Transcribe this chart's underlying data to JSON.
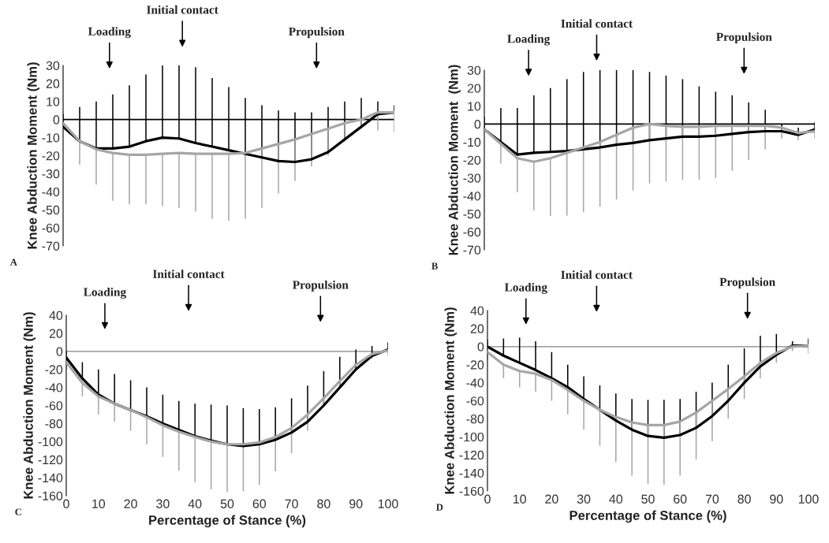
{
  "chart_data": [
    {
      "type": "line",
      "ylabel": "Knee Abduction Moment (Nm)",
      "ylim": [
        -70,
        30
      ],
      "yticks": [
        -70,
        -60,
        -50,
        -40,
        -30,
        -20,
        -10,
        0,
        10,
        20,
        30
      ],
      "tick_labels": "y",
      "categories": [
        null,
        null,
        null,
        null,
        null,
        null,
        null,
        null,
        null,
        null,
        null,
        null,
        null,
        null,
        null,
        null,
        null,
        null,
        null,
        null,
        null
      ],
      "ref_lines": [
        {
          "axis": "y",
          "value": 0,
          "color": "#000000"
        }
      ],
      "series": [
        {
          "color": "#000000",
          "values": [
            -4,
            -12,
            -16,
            -16,
            -15,
            -12,
            -10,
            -10.5,
            -13,
            -15,
            -17,
            -19,
            -21,
            -23,
            -23.5,
            -22,
            -18,
            -11,
            -4,
            3,
            4
          ],
          "errors": [
            [
              -4,
              3
            ],
            [
              -12,
              7
            ],
            [
              -16,
              10
            ],
            [
              -16,
              14
            ],
            [
              -15,
              19
            ],
            [
              -12,
              25
            ],
            [
              -10,
              30
            ],
            [
              -10.5,
              30
            ],
            [
              -13,
              29
            ],
            [
              -15,
              23
            ],
            [
              -17,
              18
            ],
            [
              -19,
              12
            ],
            [
              -21,
              8
            ],
            [
              -23,
              5
            ],
            [
              -23.5,
              4
            ],
            [
              -22,
              4
            ],
            [
              -18,
              7
            ],
            [
              -11,
              10
            ],
            [
              -4,
              12
            ],
            [
              3,
              10
            ],
            [
              4,
              8
            ]
          ]
        },
        {
          "color": "#a6a6a6",
          "values": [
            -2,
            -12,
            -16.5,
            -18.5,
            -19.5,
            -19.5,
            -19,
            -18.5,
            -19,
            -19,
            -19,
            -18.5,
            -16,
            -13.5,
            -11,
            -8,
            -5,
            -2,
            0,
            4,
            4
          ],
          "errors": [
            [
              -3,
              -2
            ],
            [
              -25,
              -12
            ],
            [
              -36,
              -16.5
            ],
            [
              -45,
              -18.5
            ],
            [
              -47,
              -19.5
            ],
            [
              -47,
              -19.5
            ],
            [
              -48,
              -19
            ],
            [
              -49,
              -18.5
            ],
            [
              -51,
              -19
            ],
            [
              -55,
              -19
            ],
            [
              -56,
              -19
            ],
            [
              -55,
              -18.5
            ],
            [
              -49,
              -16
            ],
            [
              -41,
              -13.5
            ],
            [
              -34,
              -11
            ],
            [
              -26,
              -8
            ],
            [
              -20,
              -5
            ],
            [
              -12,
              -2
            ],
            [
              -5,
              0
            ],
            [
              -6,
              4
            ],
            [
              -7,
              4
            ]
          ]
        }
      ],
      "annotations": [
        "Loading",
        "Initial contact",
        "Propulsion",
        "A"
      ]
    },
    {
      "type": "line",
      "ylabel": "Knee Abduction Moment  (Nm)",
      "ylim": [
        -70,
        30
      ],
      "yticks": [
        -70,
        -60,
        -50,
        -40,
        -30,
        -20,
        -10,
        0,
        10,
        20,
        30
      ],
      "tick_labels": "y",
      "categories": [
        null,
        null,
        null,
        null,
        null,
        null,
        null,
        null,
        null,
        null,
        null,
        null,
        null,
        null,
        null,
        null,
        null,
        null,
        null,
        null,
        null
      ],
      "ref_lines": [
        {
          "axis": "y",
          "value": 0,
          "color": "#000000"
        }
      ],
      "series": [
        {
          "color": "#000000",
          "values": [
            -3,
            -10,
            -17,
            -16,
            -15.5,
            -15,
            -14,
            -13,
            -11.5,
            -10.5,
            -9,
            -8,
            -7,
            -7,
            -6.5,
            -5.5,
            -4.5,
            -4,
            -4,
            -6,
            -3
          ],
          "errors": [
            [
              -3,
              4
            ],
            [
              -10,
              9
            ],
            [
              -17,
              9
            ],
            [
              -16,
              16
            ],
            [
              -15.5,
              20
            ],
            [
              -15,
              25
            ],
            [
              -14,
              29
            ],
            [
              -13,
              30
            ],
            [
              -11.5,
              30
            ],
            [
              -10.5,
              30
            ],
            [
              -9,
              29
            ],
            [
              -8,
              27
            ],
            [
              -7,
              25
            ],
            [
              -7,
              21
            ],
            [
              -6.5,
              18
            ],
            [
              -5.5,
              16
            ],
            [
              -4.5,
              12
            ],
            [
              -4,
              8
            ],
            [
              -4,
              0
            ],
            [
              -6,
              -2
            ],
            [
              -3,
              1
            ]
          ]
        },
        {
          "color": "#a6a6a6",
          "values": [
            -3,
            -11,
            -19,
            -21,
            -19,
            -16,
            -13,
            -10,
            -6,
            -2,
            0,
            -1,
            -1.5,
            -1.5,
            -1,
            -1,
            -1,
            -1,
            -2,
            -5,
            -4
          ],
          "errors": [
            [
              -4,
              -3
            ],
            [
              -22,
              -11
            ],
            [
              -38,
              -19
            ],
            [
              -48,
              -21
            ],
            [
              -51,
              -19
            ],
            [
              -51,
              -16
            ],
            [
              -49,
              -13
            ],
            [
              -46,
              -10
            ],
            [
              -42,
              -6
            ],
            [
              -37,
              -2
            ],
            [
              -33,
              0
            ],
            [
              -32,
              -1
            ],
            [
              -31,
              -1.5
            ],
            [
              -31,
              -1.5
            ],
            [
              -30,
              -1
            ],
            [
              -26,
              -1
            ],
            [
              -20,
              -1
            ],
            [
              -14,
              -1
            ],
            [
              -8,
              -2
            ],
            [
              -9,
              -5
            ],
            [
              -8,
              -4
            ]
          ]
        }
      ],
      "annotations": [
        "Loading",
        "Initial contact",
        "Propulsion",
        "B"
      ]
    },
    {
      "type": "line",
      "ylabel": "Knee Abduction Moment (Nm)",
      "xlabel": "Percentage of Stance (%)",
      "xlim": [
        0,
        100
      ],
      "xticks": [
        0,
        10,
        20,
        30,
        40,
        50,
        60,
        70,
        80,
        90,
        100
      ],
      "ylim": [
        -160,
        40
      ],
      "yticks": [
        -160,
        -140,
        -120,
        -100,
        -80,
        -60,
        -40,
        -20,
        0,
        20,
        40
      ],
      "x": [
        0,
        5,
        10,
        15,
        20,
        25,
        30,
        35,
        40,
        45,
        50,
        55,
        60,
        65,
        70,
        75,
        80,
        85,
        90,
        95,
        100
      ],
      "ref_lines": [
        {
          "axis": "y",
          "value": 0,
          "color": "#a6a6a6"
        }
      ],
      "series": [
        {
          "color": "#000000",
          "values": [
            -7,
            -30,
            -48,
            -58,
            -65,
            -72,
            -80,
            -87,
            -94,
            -99,
            -103,
            -105,
            -103,
            -98,
            -90,
            -78,
            -60,
            -40,
            -20,
            -5,
            2
          ],
          "errors": [
            [
              -7,
              0
            ],
            [
              -30,
              -12
            ],
            [
              -48,
              -20
            ],
            [
              -58,
              -25
            ],
            [
              -65,
              -32
            ],
            [
              -72,
              -40
            ],
            [
              -80,
              -48
            ],
            [
              -87,
              -55
            ],
            [
              -94,
              -58
            ],
            [
              -99,
              -59
            ],
            [
              -103,
              -60
            ],
            [
              -105,
              -63
            ],
            [
              -103,
              -64
            ],
            [
              -98,
              -62
            ],
            [
              -90,
              -52
            ],
            [
              -78,
              -38
            ],
            [
              -60,
              -22
            ],
            [
              -40,
              -6
            ],
            [
              -20,
              2
            ],
            [
              -5,
              6
            ],
            [
              2,
              10
            ]
          ]
        },
        {
          "color": "#a6a6a6",
          "values": [
            -12,
            -35,
            -50,
            -58,
            -65,
            -73,
            -82,
            -89,
            -95,
            -100,
            -103,
            -103,
            -101,
            -95,
            -85,
            -70,
            -52,
            -33,
            -15,
            -3,
            1
          ],
          "errors": [
            [
              -20,
              -12
            ],
            [
              -50,
              -35
            ],
            [
              -70,
              -50
            ],
            [
              -78,
              -58
            ],
            [
              -88,
              -65
            ],
            [
              -103,
              -73
            ],
            [
              -117,
              -82
            ],
            [
              -132,
              -89
            ],
            [
              -145,
              -95
            ],
            [
              -153,
              -100
            ],
            [
              -156,
              -103
            ],
            [
              -155,
              -103
            ],
            [
              -148,
              -101
            ],
            [
              -133,
              -95
            ],
            [
              -113,
              -85
            ],
            [
              -88,
              -70
            ],
            [
              -62,
              -52
            ],
            [
              -38,
              -33
            ],
            [
              -17,
              -15
            ],
            [
              -8,
              -3
            ],
            [
              -5,
              1
            ]
          ]
        }
      ],
      "annotations": [
        "Loading",
        "Initial contact",
        "Propulsion",
        "C"
      ]
    },
    {
      "type": "line",
      "ylabel": "Knee Abduction Moment (Nm)",
      "xlabel": "Percentage of Stance (%)",
      "xlim": [
        0,
        100
      ],
      "xticks": [
        0,
        10,
        20,
        30,
        40,
        50,
        60,
        70,
        80,
        90,
        100
      ],
      "ylim": [
        -160,
        40
      ],
      "yticks": [
        -160,
        -140,
        -120,
        -100,
        -80,
        -60,
        -40,
        -20,
        0,
        20,
        40
      ],
      "x": [
        0,
        5,
        10,
        15,
        20,
        25,
        30,
        35,
        40,
        45,
        50,
        55,
        60,
        65,
        70,
        75,
        80,
        85,
        90,
        95,
        100
      ],
      "ref_lines": [
        {
          "axis": "y",
          "value": 0,
          "color": "#a6a6a6"
        }
      ],
      "series": [
        {
          "color": "#000000",
          "values": [
            0,
            -10,
            -18,
            -26,
            -35,
            -45,
            -58,
            -70,
            -82,
            -92,
            -99,
            -101,
            -98,
            -90,
            -77,
            -60,
            -40,
            -22,
            -9,
            1,
            1
          ],
          "errors": [
            [
              0,
              8
            ],
            [
              -10,
              9
            ],
            [
              -18,
              10
            ],
            [
              -26,
              6
            ],
            [
              -35,
              -6
            ],
            [
              -45,
              -20
            ],
            [
              -58,
              -33
            ],
            [
              -70,
              -43
            ],
            [
              -82,
              -52
            ],
            [
              -92,
              -58
            ],
            [
              -99,
              -59
            ],
            [
              -101,
              -59
            ],
            [
              -98,
              -58
            ],
            [
              -90,
              -50
            ],
            [
              -77,
              -40
            ],
            [
              -60,
              -20
            ],
            [
              -40,
              -2
            ],
            [
              -22,
              12
            ],
            [
              -9,
              14
            ],
            [
              1,
              6
            ],
            [
              1,
              9
            ]
          ]
        },
        {
          "color": "#a6a6a6",
          "values": [
            -6,
            -20,
            -27,
            -30,
            -37,
            -48,
            -60,
            -70,
            -78,
            -84,
            -87,
            -87,
            -83,
            -73,
            -60,
            -47,
            -33,
            -18,
            -7,
            0,
            1
          ],
          "errors": [
            [
              -15,
              -6
            ],
            [
              -35,
              -20
            ],
            [
              -45,
              -27
            ],
            [
              -50,
              -30
            ],
            [
              -60,
              -37
            ],
            [
              -75,
              -48
            ],
            [
              -92,
              -60
            ],
            [
              -110,
              -70
            ],
            [
              -128,
              -78
            ],
            [
              -143,
              -84
            ],
            [
              -152,
              -87
            ],
            [
              -153,
              -87
            ],
            [
              -143,
              -83
            ],
            [
              -125,
              -73
            ],
            [
              -105,
              -60
            ],
            [
              -80,
              -47
            ],
            [
              -58,
              -33
            ],
            [
              -35,
              -18
            ],
            [
              -18,
              -7
            ],
            [
              -5,
              0
            ],
            [
              -8,
              1
            ]
          ]
        }
      ],
      "annotations": [
        "Loading",
        "Initial contact",
        "Propulsion",
        "D"
      ]
    }
  ]
}
